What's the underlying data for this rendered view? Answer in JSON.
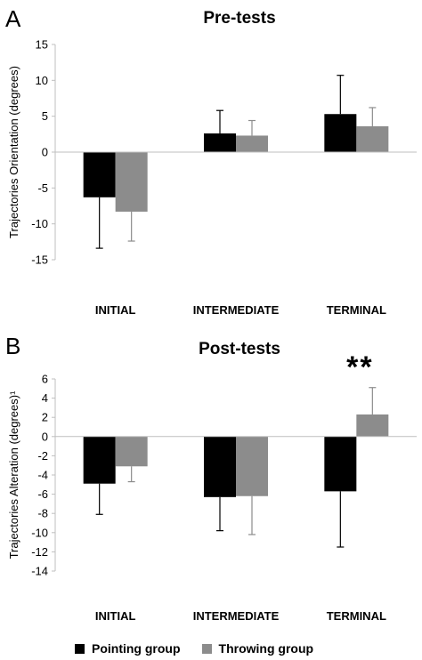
{
  "legend": [
    {
      "name": "Pointing group",
      "color": "#000000"
    },
    {
      "name": "Throwing group",
      "color": "#8c8c8c"
    }
  ],
  "chart_data": [
    {
      "type": "bar",
      "panel": "A",
      "title": "Pre-tests",
      "ylabel": "Trajectories Orientation (degrees)",
      "categories": [
        "INITIAL",
        "INTERMEDIATE",
        "TERMINAL"
      ],
      "ylim": [
        -15,
        15
      ],
      "yticks": [
        15,
        10,
        5,
        0,
        -5,
        -10,
        -15
      ],
      "series": [
        {
          "name": "Pointing group",
          "color": "#000000",
          "values": [
            -6.3,
            2.6,
            5.3
          ],
          "error": [
            7.1,
            3.2,
            5.4
          ]
        },
        {
          "name": "Throwing group",
          "color": "#8c8c8c",
          "values": [
            -8.3,
            2.3,
            3.6
          ],
          "error": [
            4.1,
            2.1,
            2.6
          ]
        }
      ],
      "annotations": []
    },
    {
      "type": "bar",
      "panel": "B",
      "title": "Post-tests",
      "ylabel": "Trajectories Alteration (degrees)¹",
      "categories": [
        "INITIAL",
        "INTERMEDIATE",
        "TERMINAL"
      ],
      "ylim": [
        -14,
        6
      ],
      "yticks": [
        6,
        4,
        2,
        0,
        -2,
        -4,
        -6,
        -8,
        -10,
        -12,
        -14
      ],
      "series": [
        {
          "name": "Pointing group",
          "color": "#000000",
          "values": [
            -4.9,
            -6.3,
            -5.7
          ],
          "error": [
            3.2,
            3.5,
            5.8
          ]
        },
        {
          "name": "Throwing group",
          "color": "#8c8c8c",
          "values": [
            -3.1,
            -6.2,
            2.3
          ],
          "error": [
            1.6,
            4.0,
            2.8
          ]
        }
      ],
      "annotations": [
        {
          "text": "**",
          "category": "TERMINAL"
        }
      ]
    }
  ]
}
